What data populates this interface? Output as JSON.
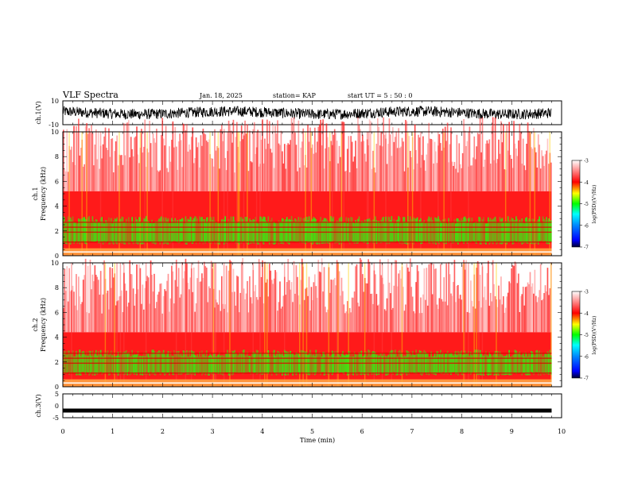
{
  "header": {
    "title": "VLF Spectra",
    "date": "Jan. 18, 2025",
    "station": "station= KAP",
    "start": "start  UT =   5 : 50 : 0"
  },
  "chart_data": [
    {
      "type": "line",
      "title": "",
      "ylabel": "ch.1(V)",
      "ylim": [
        -10,
        10
      ],
      "yticks": [
        "10",
        "-10"
      ],
      "xlim": [
        0,
        10
      ],
      "description_free": true,
      "series": [
        {
          "values_note": "dense noise roughly between -5 and 5 V"
        }
      ]
    },
    {
      "type": "heatmap",
      "ylabel": "ch.1\nFrequency (kHz)",
      "ylabel_lines": [
        "ch.1",
        "Frequency (kHz)"
      ],
      "ylim": [
        0,
        10
      ],
      "yticks": [
        "0",
        "2",
        "4",
        "6",
        "8",
        "10"
      ],
      "xlim": [
        0,
        10
      ],
      "colorbar": {
        "label": "log(PSD)(V²/Hz)",
        "ticks": [
          "-3",
          "-4",
          "-5",
          "-6",
          "-7"
        ],
        "range": [
          -7,
          -3
        ]
      }
    },
    {
      "type": "heatmap",
      "ylabel_lines": [
        "ch.2",
        "Frequency (kHz)"
      ],
      "ylim": [
        0,
        10
      ],
      "yticks": [
        "0",
        "2",
        "4",
        "6",
        "8",
        "10"
      ],
      "xlim": [
        0,
        10
      ],
      "colorbar": {
        "label": "log(PSD)(V²/Hz)",
        "ticks": [
          "-3",
          "-4",
          "-5",
          "-6",
          "-7"
        ],
        "range": [
          -7,
          -3
        ]
      }
    },
    {
      "type": "line",
      "ylabel": "ch.3(V)",
      "ylim": [
        -5,
        5
      ],
      "yticks": [
        "5",
        "0",
        "-5"
      ],
      "xlim": [
        0,
        10
      ],
      "xlabel": "Time (min)",
      "xticks": [
        "0",
        "1",
        "2",
        "3",
        "4",
        "5",
        "6",
        "7",
        "8",
        "9",
        "10"
      ],
      "series": [
        {
          "values_note": "nearly constant at about -2 V"
        }
      ]
    }
  ],
  "colors": {
    "background": "#ffffff",
    "spectrogram_high": "#ff0000",
    "spectrogram_mid": "#00ff00",
    "spectrogram_low": "#ffffff"
  }
}
